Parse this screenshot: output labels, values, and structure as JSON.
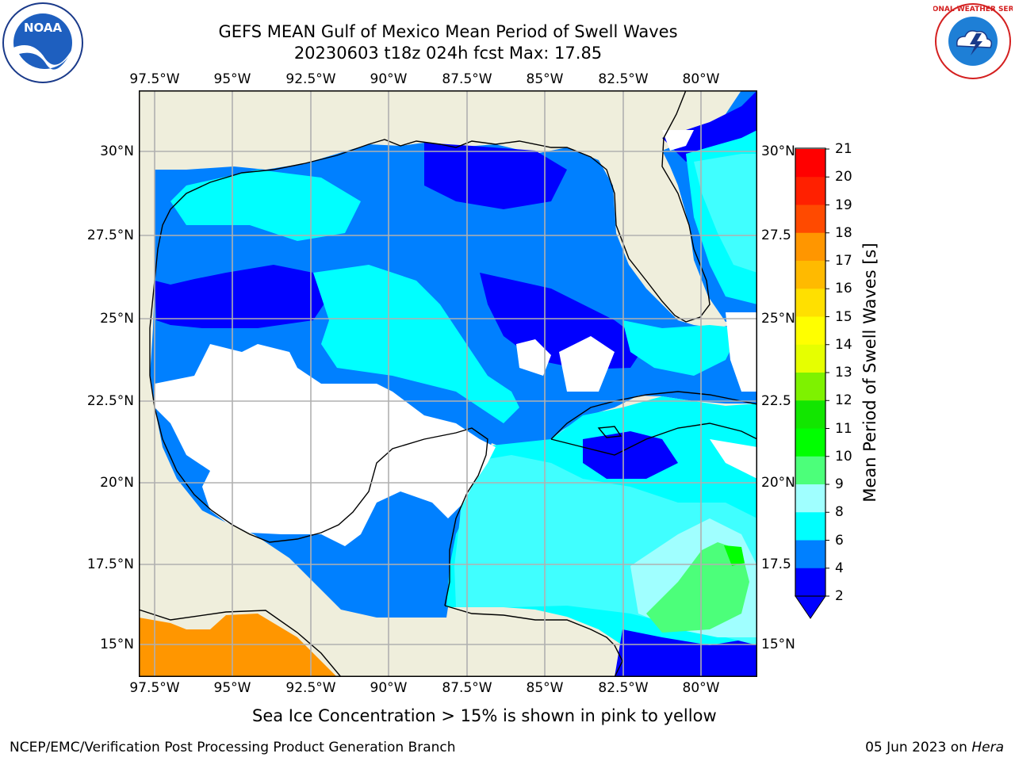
{
  "title": {
    "line1": "GEFS MEAN Gulf of Mexico Mean Period of Swell Waves",
    "line2": "20230603 t18z 024h fcst   Max: 17.85"
  },
  "axes": {
    "lon_ticks": [
      "97.5°W",
      "95°W",
      "92.5°W",
      "90°W",
      "87.5°W",
      "85°W",
      "82.5°W",
      "80°W"
    ],
    "lat_ticks_left": [
      "30°N",
      "27.5°N",
      "25°N",
      "22.5°N",
      "20°N",
      "17.5°N",
      "15°N"
    ],
    "lat_ticks_right": [
      "30°N",
      "27.5",
      "25°N",
      "22.5",
      "20°N",
      "17.5",
      "15°N"
    ]
  },
  "colorbar": {
    "title": "Mean Period of Swell Waves [s]",
    "labels": [
      "21",
      "20",
      "19",
      "18",
      "17",
      "16",
      "15",
      "14",
      "13",
      "12",
      "11",
      "10",
      "9",
      "8",
      "6",
      "4",
      "2"
    ],
    "colors": [
      "#ff0000",
      "#ff2000",
      "#ff4a00",
      "#ff7400",
      "#ff9600",
      "#ffba00",
      "#ffe000",
      "#ffff00",
      "#e6ff00",
      "#c0ff00",
      "#7ef200",
      "#12e600",
      "#00ff00",
      "#4cff7a",
      "#a0ffff",
      "#40ffff",
      "#00ffff",
      "#0080ff",
      "#0000ff"
    ],
    "extend_color": "#0000ff"
  },
  "caption": "Sea Ice Concentration > 15% is shown in pink to yellow",
  "footer": {
    "left": "NCEP/EMC/Verification Post Processing Product Generation Branch",
    "date": "05 Jun 2023 on ",
    "machine": "Hera"
  },
  "logos": {
    "left": "NOAA",
    "right": "NATIONAL WEATHER SERVICE"
  },
  "map_colors": {
    "land": "#efeedc",
    "nodata": "#ffffff",
    "c2_4": "#0080ff",
    "c4_6": "#00ffff",
    "c6_8": "#40ffff",
    "c8_9": "#a0ffff",
    "c9_10": "#4cff7a",
    "c10_11": "#00ff00",
    "c0_2": "#0000ff",
    "c17_18": "#ff9600"
  }
}
